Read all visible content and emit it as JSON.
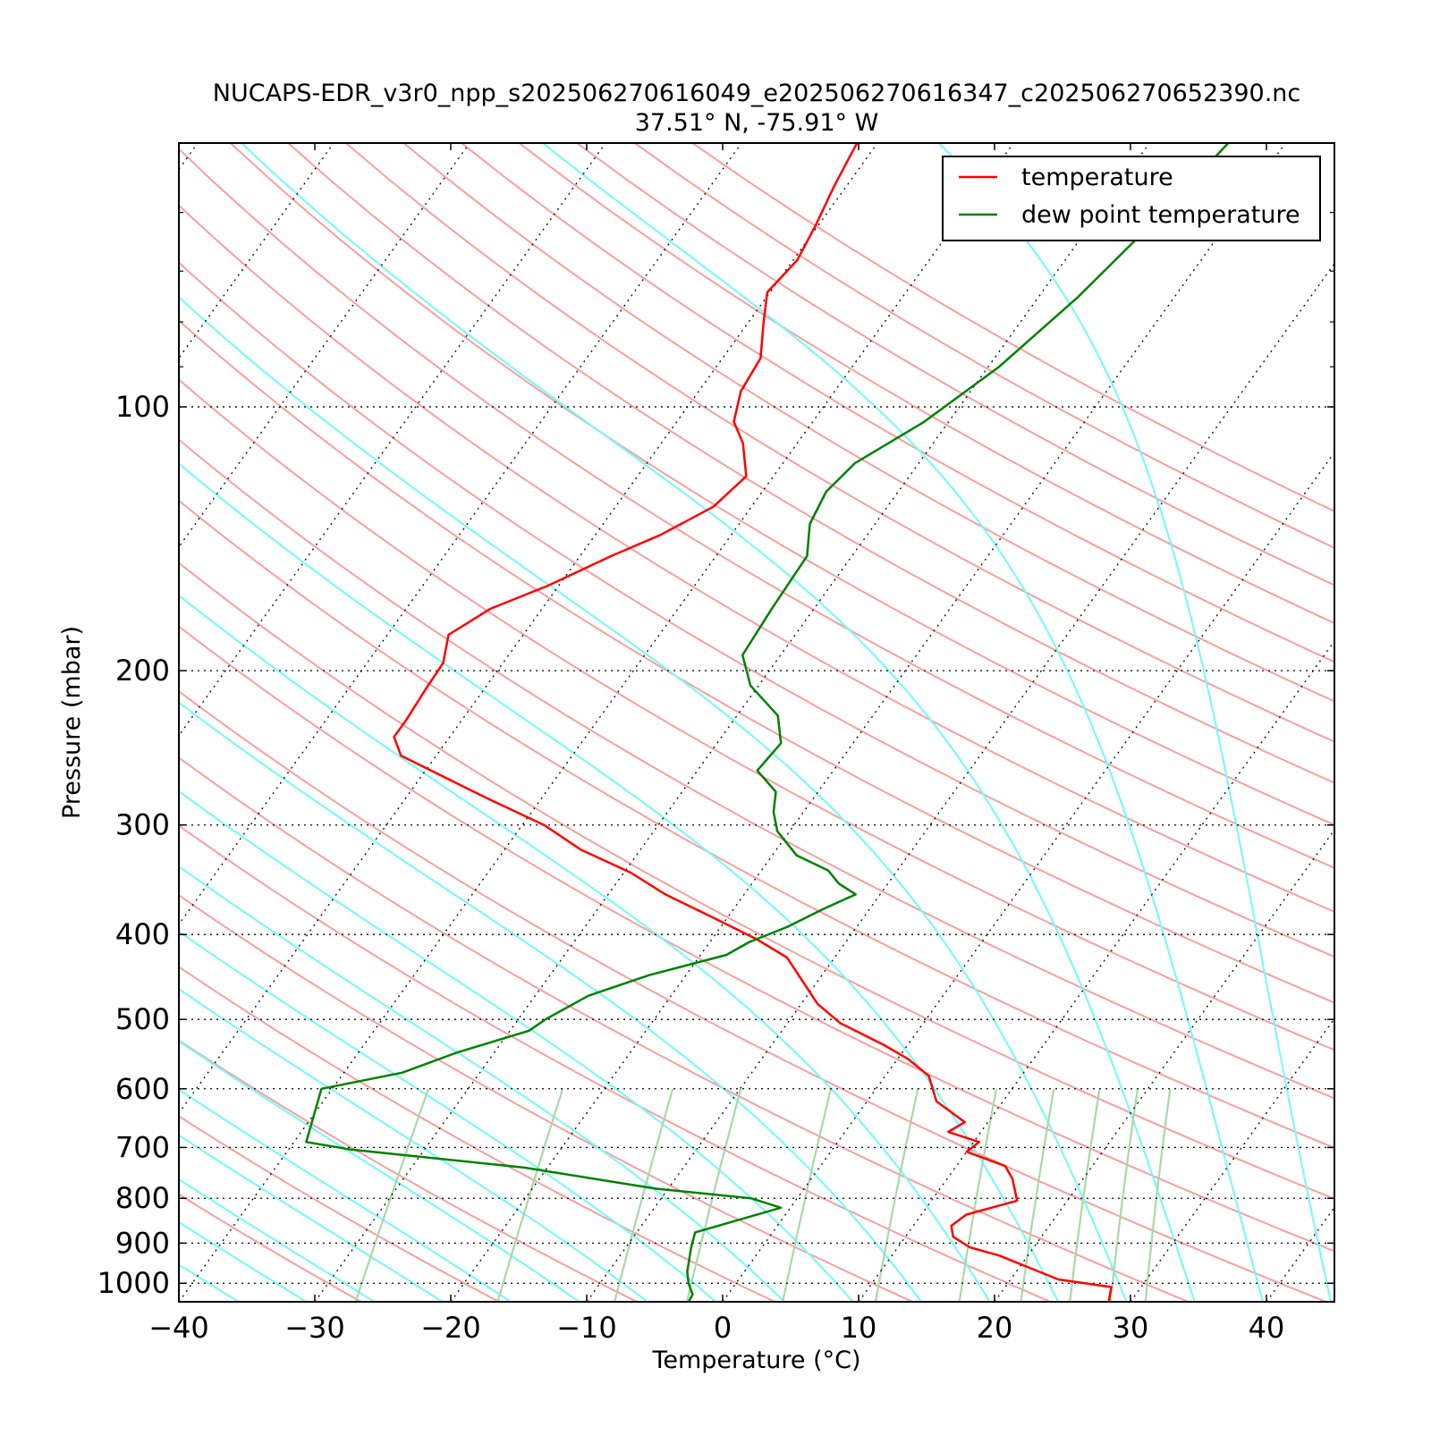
{
  "chart_data": {
    "type": "line",
    "subtype": "skew-T log-P diagram",
    "title": "NUCAPS-EDR_v3r0_npp_s202506270616049_e202506270616347_c202506270652390.nc",
    "subtitle": "37.51° N, -75.91° W",
    "xlabel": "Temperature (°C)",
    "ylabel": "Pressure (mbar)",
    "xlim": [
      -40,
      45
    ],
    "ylim": [
      1050,
      50
    ],
    "y_scale": "log",
    "x_ticks": [
      -40,
      -30,
      -20,
      -10,
      0,
      10,
      20,
      30,
      40
    ],
    "x_tick_labels": [
      "−40",
      "−30",
      "−20",
      "−10",
      "0",
      "10",
      "20",
      "30",
      "40"
    ],
    "y_ticks": [
      100,
      200,
      300,
      400,
      500,
      600,
      700,
      800,
      900,
      1000
    ],
    "y_tick_labels": [
      "100",
      "200",
      "300",
      "400",
      "500",
      "600",
      "700",
      "800",
      "900",
      "1000"
    ],
    "grid": "horizontal isobars (dotted) and skewed isotherms (dotted)",
    "legend": {
      "placement": "top-right",
      "entries": [
        "temperature",
        "dew point temperature"
      ]
    },
    "background_lines": [
      "dry adiabats (light red)",
      "moist adiabats (cyan)",
      "mixing ratio lines (light green)"
    ],
    "series": [
      {
        "name": "temperature",
        "color": "#ff0000",
        "points": [
          {
            "p": 1050,
            "t": 28.4
          },
          {
            "p": 1010,
            "t": 27.8
          },
          {
            "p": 990,
            "t": 23.5
          },
          {
            "p": 930,
            "t": 17.9
          },
          {
            "p": 910,
            "t": 15.3
          },
          {
            "p": 885,
            "t": 13.5
          },
          {
            "p": 860,
            "t": 12.8
          },
          {
            "p": 835,
            "t": 13.3
          },
          {
            "p": 805,
            "t": 16.3
          },
          {
            "p": 760,
            "t": 14.8
          },
          {
            "p": 735,
            "t": 13.6
          },
          {
            "p": 708,
            "t": 10.0
          },
          {
            "p": 690,
            "t": 10.4
          },
          {
            "p": 672,
            "t": 7.6
          },
          {
            "p": 655,
            "t": 8.3
          },
          {
            "p": 620,
            "t": 5.1
          },
          {
            "p": 580,
            "t": 3.2
          },
          {
            "p": 555,
            "t": 0.8
          },
          {
            "p": 535,
            "t": -1.7
          },
          {
            "p": 505,
            "t": -6.1
          },
          {
            "p": 480,
            "t": -8.8
          },
          {
            "p": 425,
            "t": -13.5
          },
          {
            "p": 405,
            "t": -16.7
          },
          {
            "p": 380,
            "t": -21.6
          },
          {
            "p": 360,
            "t": -25.8
          },
          {
            "p": 340,
            "t": -29.5
          },
          {
            "p": 320,
            "t": -34.4
          },
          {
            "p": 300,
            "t": -38.4
          },
          {
            "p": 280,
            "t": -43.9
          },
          {
            "p": 260,
            "t": -49.6
          },
          {
            "p": 250,
            "t": -52.6
          },
          {
            "p": 238,
            "t": -54.1
          },
          {
            "p": 228,
            "t": -54.1
          },
          {
            "p": 210,
            "t": -54.3
          },
          {
            "p": 196,
            "t": -54.4
          },
          {
            "p": 182,
            "t": -55.5
          },
          {
            "p": 170,
            "t": -53.8
          },
          {
            "p": 160,
            "t": -50.8
          },
          {
            "p": 148,
            "t": -47.7
          },
          {
            "p": 140,
            "t": -45.2
          },
          {
            "p": 130,
            "t": -42.8
          },
          {
            "p": 120,
            "t": -42.0
          },
          {
            "p": 110,
            "t": -44.0
          },
          {
            "p": 104,
            "t": -45.8
          },
          {
            "p": 96,
            "t": -46.9
          },
          {
            "p": 88,
            "t": -47.2
          },
          {
            "p": 80,
            "t": -48.9
          },
          {
            "p": 74,
            "t": -50.2
          },
          {
            "p": 68,
            "t": -49.7
          },
          {
            "p": 62,
            "t": -50.2
          },
          {
            "p": 56,
            "t": -50.9
          },
          {
            "p": 52,
            "t": -51.3
          },
          {
            "p": 50,
            "t": -51.5
          }
        ]
      },
      {
        "name": "dew point temperature",
        "color": "#008000",
        "points": [
          {
            "p": 1050,
            "t": -2.5
          },
          {
            "p": 1030,
            "t": -2.6
          },
          {
            "p": 1000,
            "t": -3.5
          },
          {
            "p": 970,
            "t": -4.2
          },
          {
            "p": 910,
            "t": -5.2
          },
          {
            "p": 875,
            "t": -5.7
          },
          {
            "p": 820,
            "t": -0.7
          },
          {
            "p": 800,
            "t": -3.4
          },
          {
            "p": 780,
            "t": -10.9
          },
          {
            "p": 738,
            "t": -21.7
          },
          {
            "p": 704,
            "t": -35.4
          },
          {
            "p": 690,
            "t": -39.1
          },
          {
            "p": 600,
            "t": -40.8
          },
          {
            "p": 575,
            "t": -35.7
          },
          {
            "p": 545,
            "t": -32.7
          },
          {
            "p": 515,
            "t": -28.6
          },
          {
            "p": 500,
            "t": -28.0
          },
          {
            "p": 470,
            "t": -26.1
          },
          {
            "p": 445,
            "t": -22.7
          },
          {
            "p": 422,
            "t": -18.1
          },
          {
            "p": 408,
            "t": -17.1
          },
          {
            "p": 392,
            "t": -15.1
          },
          {
            "p": 374,
            "t": -13.4
          },
          {
            "p": 360,
            "t": -11.8
          },
          {
            "p": 350,
            "t": -13.6
          },
          {
            "p": 338,
            "t": -15.1
          },
          {
            "p": 325,
            "t": -18.2
          },
          {
            "p": 305,
            "t": -20.9
          },
          {
            "p": 290,
            "t": -22.2
          },
          {
            "p": 275,
            "t": -23.1
          },
          {
            "p": 260,
            "t": -25.6
          },
          {
            "p": 242,
            "t": -25.3
          },
          {
            "p": 225,
            "t": -27.0
          },
          {
            "p": 208,
            "t": -30.6
          },
          {
            "p": 192,
            "t": -32.8
          },
          {
            "p": 170,
            "t": -33.1
          },
          {
            "p": 148,
            "t": -33.3
          },
          {
            "p": 136,
            "t": -34.8
          },
          {
            "p": 125,
            "t": -35.3
          },
          {
            "p": 116,
            "t": -34.7
          },
          {
            "p": 104,
            "t": -31.8
          },
          {
            "p": 90,
            "t": -29.2
          },
          {
            "p": 75,
            "t": -27.1
          },
          {
            "p": 60,
            "t": -25.3
          },
          {
            "p": 50,
            "t": -24.2
          }
        ]
      }
    ]
  }
}
